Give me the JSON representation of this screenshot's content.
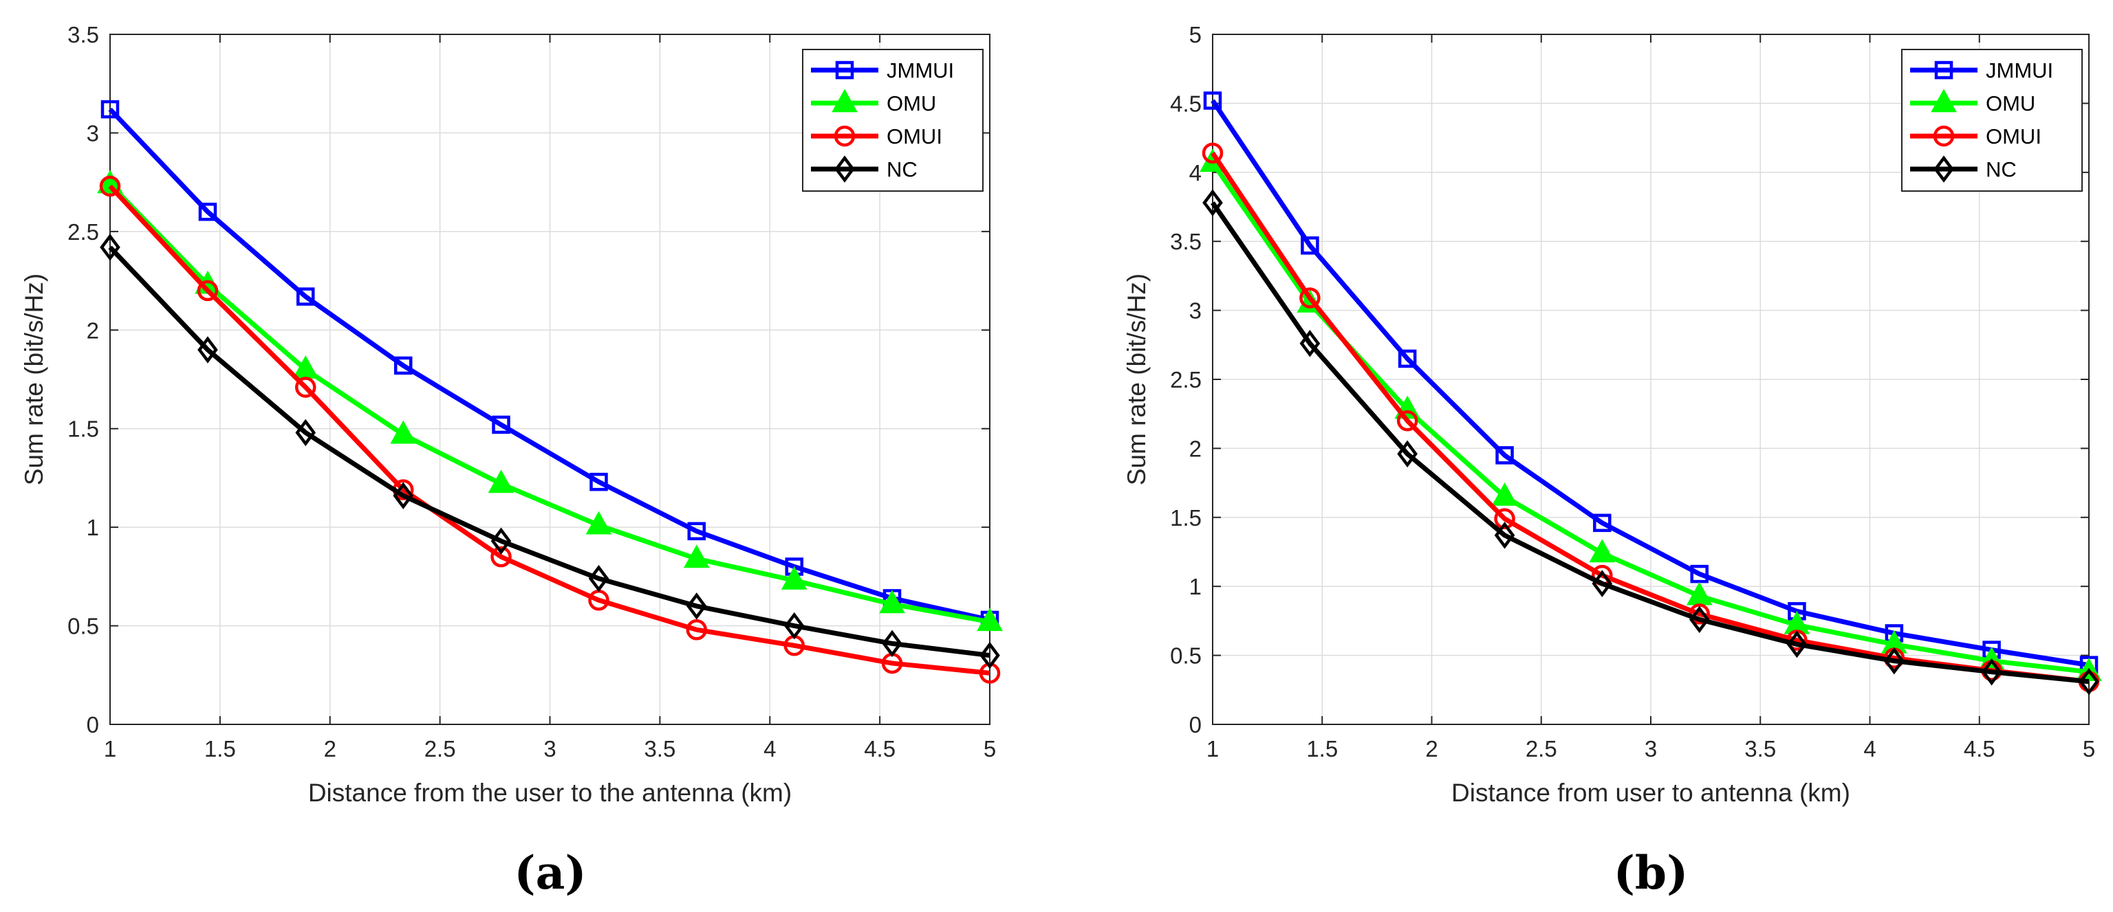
{
  "chart_data": [
    {
      "type": "line",
      "panel_label": "(a)",
      "xlabel": "Distance from the user to the antenna (km)",
      "ylabel": "Sum rate (bit/s/Hz)",
      "xlim": [
        1,
        5
      ],
      "ylim": [
        0,
        3.5
      ],
      "xticks": [
        "1",
        "1.5",
        "2",
        "2.5",
        "3",
        "3.5",
        "4",
        "4.5",
        "5"
      ],
      "yticks": [
        "0",
        "0.5",
        "1",
        "1.5",
        "2",
        "2.5",
        "3",
        "3.5"
      ],
      "grid": true,
      "legend_position": "top-right",
      "x": [
        1,
        1.444,
        1.889,
        2.333,
        2.778,
        3.222,
        3.667,
        4.111,
        4.556,
        5
      ],
      "series": [
        {
          "name": "JMMUI",
          "color": "#0000ff",
          "marker": "square",
          "values": [
            3.12,
            2.6,
            2.17,
            1.82,
            1.52,
            1.23,
            0.98,
            0.8,
            0.64,
            0.53
          ]
        },
        {
          "name": "OMU",
          "color": "#00ff00",
          "marker": "triangle",
          "values": [
            2.74,
            2.23,
            1.8,
            1.47,
            1.22,
            1.01,
            0.84,
            0.73,
            0.61,
            0.52
          ]
        },
        {
          "name": "OMUI",
          "color": "#ff0000",
          "marker": "circle",
          "values": [
            2.73,
            2.2,
            1.71,
            1.19,
            0.85,
            0.63,
            0.48,
            0.4,
            0.31,
            0.26
          ]
        },
        {
          "name": "NC",
          "color": "#000000",
          "marker": "diamond",
          "values": [
            2.42,
            1.9,
            1.48,
            1.16,
            0.93,
            0.74,
            0.6,
            0.5,
            0.41,
            0.35
          ]
        }
      ]
    },
    {
      "type": "line",
      "panel_label": "(b)",
      "xlabel": "Distance from user to antenna (km)",
      "ylabel": "Sum rate (bit/s/Hz)",
      "xlim": [
        1,
        5
      ],
      "ylim": [
        0,
        5
      ],
      "xticks": [
        "1",
        "1.5",
        "2",
        "2.5",
        "3",
        "3.5",
        "4",
        "4.5",
        "5"
      ],
      "yticks": [
        "0",
        "0.5",
        "1",
        "1.5",
        "2",
        "2.5",
        "3",
        "3.5",
        "4",
        "4.5",
        "5"
      ],
      "grid": true,
      "legend_position": "top-right",
      "x": [
        1,
        1.444,
        1.889,
        2.333,
        2.778,
        3.222,
        3.667,
        4.111,
        4.556,
        5
      ],
      "series": [
        {
          "name": "JMMUI",
          "color": "#0000ff",
          "marker": "square",
          "values": [
            4.52,
            3.47,
            2.65,
            1.95,
            1.46,
            1.09,
            0.82,
            0.66,
            0.54,
            0.43
          ]
        },
        {
          "name": "OMU",
          "color": "#00ff00",
          "marker": "triangle",
          "values": [
            4.07,
            3.05,
            2.28,
            1.65,
            1.24,
            0.93,
            0.72,
            0.58,
            0.46,
            0.38
          ]
        },
        {
          "name": "OMUI",
          "color": "#ff0000",
          "marker": "circle",
          "values": [
            4.14,
            3.09,
            2.2,
            1.49,
            1.08,
            0.8,
            0.61,
            0.48,
            0.39,
            0.31
          ]
        },
        {
          "name": "NC",
          "color": "#000000",
          "marker": "diamond",
          "values": [
            3.78,
            2.76,
            1.96,
            1.37,
            1.02,
            0.76,
            0.58,
            0.46,
            0.38,
            0.31
          ]
        }
      ]
    }
  ]
}
